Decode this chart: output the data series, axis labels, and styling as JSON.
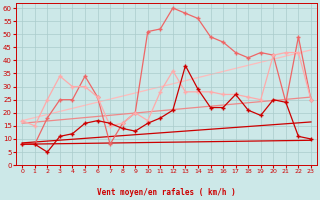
{
  "x": [
    0,
    1,
    2,
    3,
    4,
    5,
    6,
    7,
    8,
    9,
    10,
    11,
    12,
    13,
    14,
    15,
    16,
    17,
    18,
    19,
    20,
    21,
    22,
    23
  ],
  "data_line1": [
    8,
    8,
    5,
    11,
    12,
    16,
    17,
    16,
    14,
    13,
    16,
    18,
    21,
    38,
    29,
    22,
    22,
    27,
    21,
    19,
    25,
    24,
    11,
    10
  ],
  "data_line2": [
    8,
    8,
    18,
    25,
    25,
    34,
    26,
    8,
    16,
    20,
    51,
    52,
    60,
    58,
    56,
    49,
    47,
    43,
    41,
    43,
    42,
    24,
    49,
    25
  ],
  "data_line3": [
    17,
    15,
    25,
    34,
    30,
    30,
    26,
    15,
    16,
    20,
    17,
    28,
    36,
    28,
    28,
    28,
    27,
    27,
    26,
    25,
    42,
    43,
    43,
    25
  ],
  "trend1_x": [
    0,
    23
  ],
  "trend1_y": [
    8.0,
    9.5
  ],
  "trend2_x": [
    0,
    23
  ],
  "trend2_y": [
    8.5,
    16.5
  ],
  "trend3_x": [
    0,
    23
  ],
  "trend3_y": [
    16.0,
    26.0
  ],
  "trend4_x": [
    0,
    23
  ],
  "trend4_y": [
    17.0,
    44.0
  ],
  "colors": {
    "data1": "#cc0000",
    "data2": "#ee6666",
    "data3": "#ffaaaa",
    "trend1": "#cc0000",
    "trend2": "#cc0000",
    "trend3": "#ee8888",
    "trend4": "#ffbbbb"
  },
  "bg_color": "#cce8e8",
  "grid_color": "#aacccc",
  "xlabel": "Vent moyen/en rafales ( km/h )",
  "ylim": [
    0,
    62
  ],
  "xlim": [
    -0.5,
    23.5
  ],
  "yticks": [
    0,
    5,
    10,
    15,
    20,
    25,
    30,
    35,
    40,
    45,
    50,
    55,
    60
  ]
}
